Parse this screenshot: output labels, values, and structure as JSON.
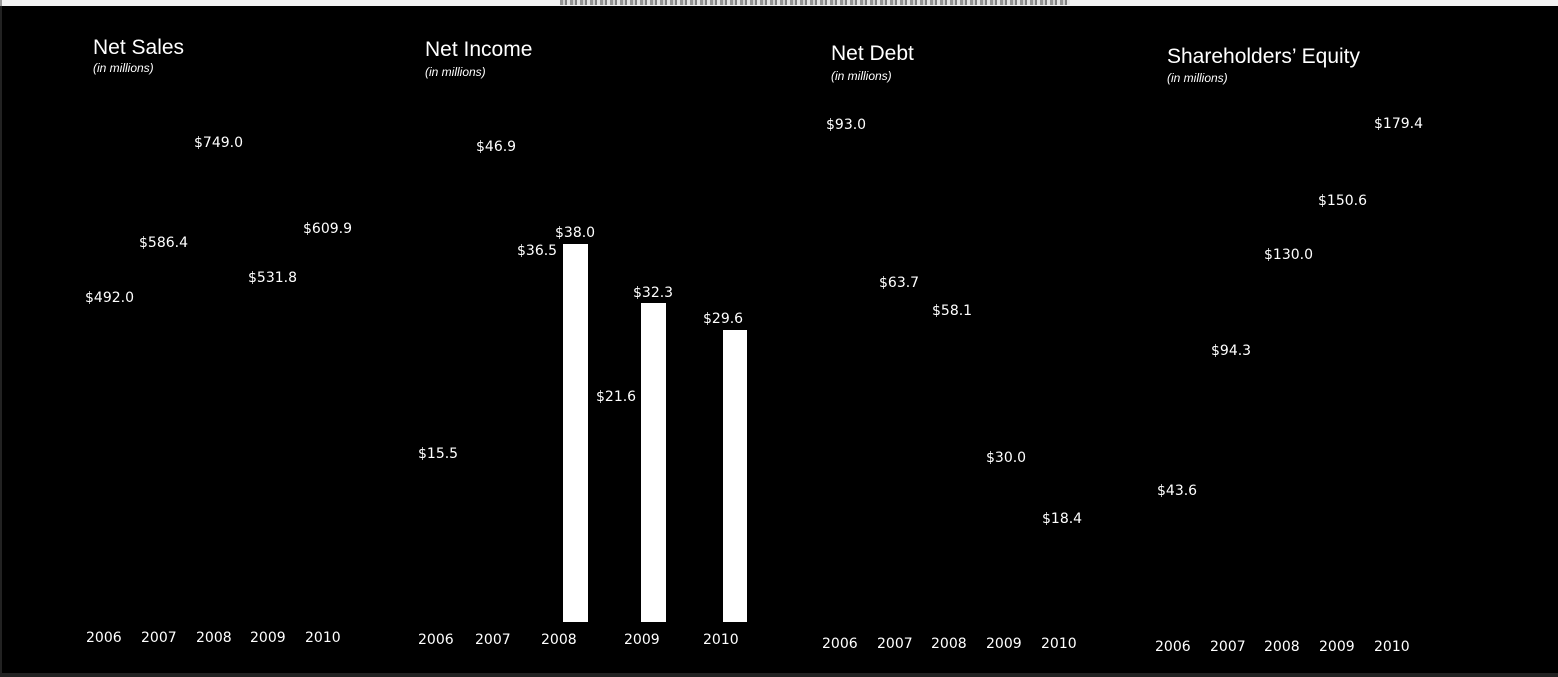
{
  "colors": {
    "background": "#000000",
    "text": "#ffffff",
    "bar": "#ffffff"
  },
  "chart_data": [
    {
      "type": "bar",
      "title": "Net Sales",
      "subtitle": "(in millions)",
      "categories": [
        "2006",
        "2007",
        "2008",
        "2009",
        "2010"
      ],
      "values": [
        492.0,
        586.4,
        749.0,
        531.8,
        609.9
      ],
      "labels": [
        "$492.0",
        "$586.4",
        "$749.0",
        "$531.8",
        "$609.9"
      ]
    },
    {
      "type": "bar",
      "title": "Net Income",
      "subtitle": "(in millions)",
      "categories": [
        "2006",
        "2007",
        "2008",
        "2009",
        "2010"
      ],
      "values": [
        15.5,
        46.9,
        36.5,
        21.6,
        29.6
      ],
      "labels": [
        "$15.5",
        "$46.9",
        "$36.5",
        "$21.6",
        "$29.6"
      ],
      "extra_labels": [
        "$38.0",
        "$32.3"
      ]
    },
    {
      "type": "bar",
      "title": "Net Debt",
      "subtitle": "(in millions)",
      "categories": [
        "2006",
        "2007",
        "2008",
        "2009",
        "2010"
      ],
      "values": [
        93.0,
        63.7,
        58.1,
        30.0,
        18.4
      ],
      "labels": [
        "$93.0",
        "$63.7",
        "$58.1",
        "$30.0",
        "$18.4"
      ]
    },
    {
      "type": "bar",
      "title": "Shareholders’ Equity",
      "subtitle": "(in millions)",
      "categories": [
        "2006",
        "2007",
        "2008",
        "2009",
        "2010"
      ],
      "values": [
        43.6,
        94.3,
        130.0,
        150.6,
        179.4
      ],
      "labels": [
        "$43.6",
        "$94.3",
        "$130.0",
        "$150.6",
        "$179.4"
      ]
    }
  ]
}
